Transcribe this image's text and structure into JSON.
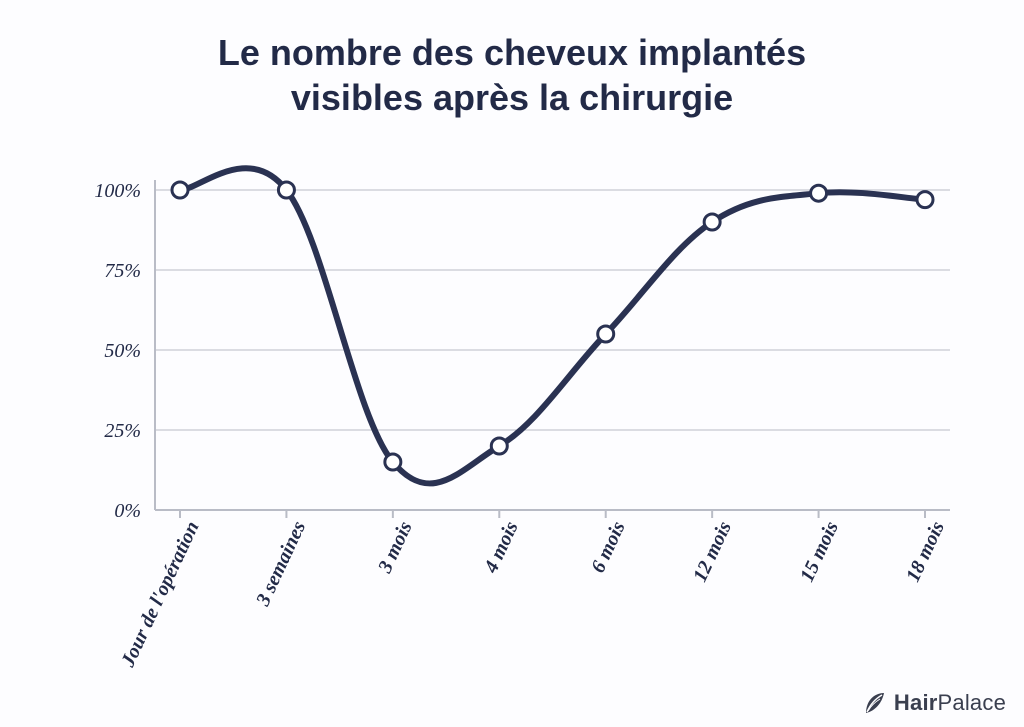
{
  "title_line1": "Le nombre des cheveux implantés",
  "title_line2": "visibles après la chirurgie",
  "title_fontsize": 36,
  "title_color": "#222a47",
  "background_color": "#fdfdff",
  "chart": {
    "type": "line",
    "line_color": "#2a3252",
    "line_width": 6,
    "marker_outer_color": "#2a3252",
    "marker_inner_color": "#ffffff",
    "marker_radius_outer": 8,
    "marker_radius_inner": 5,
    "grid_color": "#b9bcc6",
    "axis_color": "#b9bcc6",
    "ylim": [
      0,
      100
    ],
    "ytick_step": 25,
    "yticks": [
      {
        "v": 0,
        "label": "0%"
      },
      {
        "v": 25,
        "label": "25%"
      },
      {
        "v": 50,
        "label": "50%"
      },
      {
        "v": 75,
        "label": "75%"
      },
      {
        "v": 100,
        "label": "100%"
      }
    ],
    "ytick_fontsize": 20,
    "xlabels_fontsize": 20,
    "xlabels_rotate_deg": -65,
    "categories": [
      "Jour de l'opération",
      "3 semaines",
      "3 mois",
      "4 mois",
      "6 mois",
      "12 mois",
      "15 mois",
      "18 mois"
    ],
    "values": [
      100,
      100,
      15,
      20,
      55,
      90,
      99,
      97
    ]
  },
  "logo": {
    "brand_prefix": "Hair",
    "brand_suffix": "Palace",
    "icon_color": "#3a3f4f",
    "text_color": "#3a3f4f",
    "fontsize": 22
  }
}
